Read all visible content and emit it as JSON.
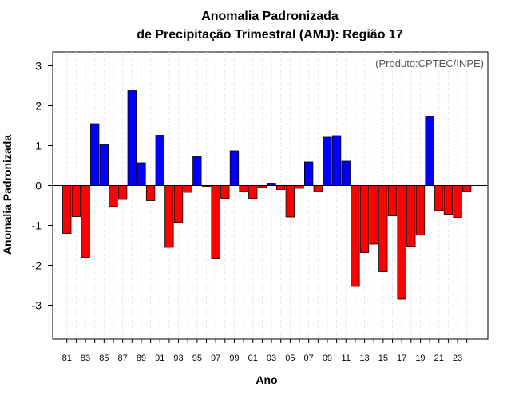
{
  "chart_data": {
    "type": "bar",
    "title": "Anomalia Padronizada",
    "subtitle": "de Precipitação Trimestral (AMJ): Região 17",
    "xlabel": "Ano",
    "ylabel": "Anomalia Padronizada",
    "annotation": "(Produto:CPTEC/INPE)",
    "ylim": [
      -3.85,
      3.35
    ],
    "yticks": [
      "-3",
      "-2",
      "-1",
      "0",
      "1",
      "2",
      "3"
    ],
    "categories": [
      "81",
      "82",
      "83",
      "84",
      "85",
      "86",
      "87",
      "88",
      "89",
      "90",
      "91",
      "92",
      "93",
      "94",
      "95",
      "96",
      "97",
      "98",
      "99",
      "00",
      "01",
      "02",
      "03",
      "04",
      "05",
      "06",
      "07",
      "08",
      "09",
      "10",
      "11",
      "12",
      "13",
      "14",
      "15",
      "16",
      "17",
      "18",
      "19",
      "20",
      "21",
      "22",
      "23",
      "24"
    ],
    "xtick_labels": [
      "81",
      "83",
      "85",
      "87",
      "89",
      "91",
      "93",
      "95",
      "97",
      "99",
      "01",
      "03",
      "05",
      "07",
      "09",
      "11",
      "13",
      "15",
      "17",
      "19",
      "21",
      "23"
    ],
    "values": [
      -1.2,
      -0.78,
      -1.8,
      1.55,
      1.02,
      -0.53,
      -0.35,
      2.38,
      0.57,
      -0.38,
      1.26,
      -1.55,
      -0.92,
      -0.17,
      0.72,
      -0.02,
      -1.82,
      -0.32,
      0.87,
      -0.15,
      -0.33,
      -0.05,
      0.06,
      -0.1,
      -0.79,
      -0.07,
      0.59,
      -0.15,
      1.21,
      1.25,
      0.61,
      -2.53,
      -1.68,
      -1.47,
      -2.16,
      -0.76,
      -2.85,
      -1.52,
      -1.24,
      1.74,
      -0.63,
      -0.72,
      -0.8,
      -0.14
    ],
    "colors": {
      "positive": "#0000ff",
      "negative": "#ff0000",
      "grid": "#d8d8d8"
    },
    "grid": "vertical dotted"
  }
}
